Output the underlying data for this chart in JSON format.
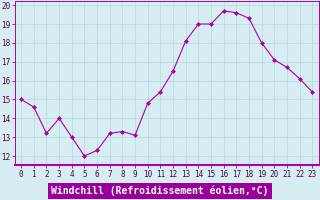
{
  "x": [
    0,
    1,
    2,
    3,
    4,
    5,
    6,
    7,
    8,
    9,
    10,
    11,
    12,
    13,
    14,
    15,
    16,
    17,
    18,
    19,
    20,
    21,
    22,
    23
  ],
  "y": [
    15.0,
    14.6,
    13.2,
    14.0,
    13.0,
    12.0,
    12.3,
    13.2,
    13.3,
    13.1,
    14.8,
    15.4,
    16.5,
    18.1,
    19.0,
    19.0,
    19.7,
    19.6,
    19.3,
    18.0,
    17.1,
    16.7,
    16.1,
    15.4
  ],
  "line_color": "#aa00aa",
  "marker": "D",
  "marker_size": 2.0,
  "bg_color": "#d6eef2",
  "grid_color": "#b8d8e0",
  "xlabel": "Windchill (Refroidissement éolien,°C)",
  "xlabel_bg": "#990099",
  "xlabel_color": "#ffffff",
  "ylim": [
    11.5,
    20.2
  ],
  "xlim": [
    -0.5,
    23.5
  ],
  "yticks": [
    12,
    13,
    14,
    15,
    16,
    17,
    18,
    19,
    20
  ],
  "xticks": [
    0,
    1,
    2,
    3,
    4,
    5,
    6,
    7,
    8,
    9,
    10,
    11,
    12,
    13,
    14,
    15,
    16,
    17,
    18,
    19,
    20,
    21,
    22,
    23
  ],
  "tick_label_fontsize": 5.5,
  "xlabel_fontsize": 7.0,
  "line_width": 0.8,
  "spine_color": "#aa00aa",
  "bottom_spine_color": "#aa00aa"
}
